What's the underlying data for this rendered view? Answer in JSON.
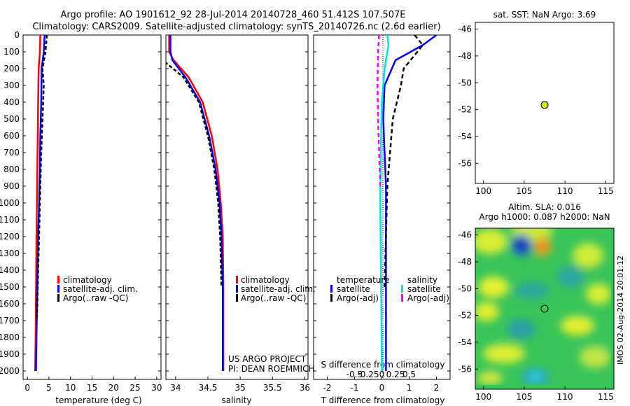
{
  "title_line1": "Argo profile: AO 1901612_92 28-Jul-2014 20140728_460 51.412S 107.507E",
  "title_line2": "Climatology: CARS2009. Satellite-adjusted climatology: synTS_20140726.nc (2.6d earlier)",
  "colors": {
    "climatology": "#ff0000",
    "satellite": "#0000ff",
    "argo": "#000000",
    "sat_salinity": "#00e5e5",
    "argo_salinity": "#ff00ff",
    "float_marker": "#d8e620"
  },
  "depth_ticks": [
    "0",
    "100",
    "200",
    "300",
    "400",
    "500",
    "600",
    "700",
    "800",
    "900",
    "1000",
    "1100",
    "1200",
    "1300",
    "1400",
    "1500",
    "1600",
    "1700",
    "1800",
    "1900",
    "2000"
  ],
  "panel_temperature": {
    "xlabel": "temperature (deg C)",
    "xticks": [
      "0",
      "5",
      "10",
      "15",
      "20",
      "25",
      "30"
    ],
    "legend": [
      "climatology",
      "satellite-adj. clim.",
      "Argo(..raw -QC)"
    ]
  },
  "panel_salinity": {
    "xlabel": "salinity",
    "xticks": [
      "34",
      "34.5",
      "35",
      "35.5",
      "36"
    ],
    "legend": [
      "climatology",
      "satellite-adj. clim.",
      "Argo(..raw -QC)"
    ],
    "note1": "US ARGO PROJECT",
    "note2": "PI: DEAN ROEMMICH"
  },
  "panel_diff": {
    "xlabel": "T difference from climatology",
    "xlabel_top": "S difference from climatology",
    "xticks_t": [
      "-2",
      "-1",
      "0",
      "1",
      "2"
    ],
    "xticks_s": [
      "-0.5",
      "-0.25",
      "0",
      "0.25",
      "0.5"
    ],
    "legend_t_header": "temperature",
    "legend_s_header": "salinity",
    "legend_t": [
      "satellite",
      "Argo(-adj)"
    ],
    "legend_s": [
      "satellite",
      "Argo(-adj)"
    ]
  },
  "panel_sst": {
    "title": "sat. SST: NaN Argo: 3.69",
    "xticks": [
      "100",
      "105",
      "110",
      "115"
    ],
    "yticks": [
      "-46",
      "-48",
      "-50",
      "-52",
      "-54",
      "-56"
    ]
  },
  "panel_sla": {
    "title1": "Altim. SLA: 0.016",
    "title2": "Argo h1000: 0.087 h2000: NaN",
    "xticks": [
      "100",
      "105",
      "110",
      "115"
    ],
    "yticks": [
      "-46",
      "-48",
      "-50",
      "-52",
      "-54",
      "-56"
    ],
    "side_label": "IMOS 02-Aug-2014 20:01:12"
  },
  "chart_data": [
    {
      "type": "line",
      "xlabel": "temperature (deg C)",
      "xlim": [
        -1,
        31
      ],
      "ylim": [
        2050,
        0
      ],
      "series": [
        {
          "name": "climatology",
          "x": [
            3.0,
            2.9,
            2.6,
            2.5,
            2.4,
            2.3,
            2.2,
            2.1,
            2.0,
            1.9,
            1.8
          ],
          "y": [
            0,
            100,
            200,
            400,
            600,
            800,
            1000,
            1200,
            1500,
            1800,
            2000
          ]
        },
        {
          "name": "satellite-adj. clim.",
          "x": [
            4.0,
            3.8,
            3.3,
            3.2,
            3.0,
            2.9,
            2.7,
            2.5,
            2.3,
            2.1,
            2.0
          ],
          "y": [
            0,
            100,
            200,
            400,
            600,
            800,
            1000,
            1200,
            1500,
            1800,
            2000
          ]
        },
        {
          "name": "Argo(..raw -QC)",
          "x": [
            4.5,
            4.2,
            3.5,
            3.8,
            3.5,
            3.2,
            3.0,
            2.8,
            2.6,
            2.4,
            2.2
          ],
          "y": [
            0,
            100,
            200,
            300,
            500,
            700,
            900,
            1100,
            1300,
            1500,
            1700
          ]
        }
      ]
    },
    {
      "type": "line",
      "xlabel": "salinity",
      "xlim": [
        33.85,
        36.05
      ],
      "ylim": [
        2050,
        0
      ],
      "series": [
        {
          "name": "climatology",
          "x": [
            33.9,
            33.9,
            33.97,
            34.2,
            34.42,
            34.56,
            34.65,
            34.7,
            34.73,
            34.74,
            34.74
          ],
          "y": [
            0,
            100,
            150,
            250,
            400,
            600,
            800,
            1000,
            1200,
            1500,
            2000
          ]
        },
        {
          "name": "satellite-adj. clim.",
          "x": [
            33.92,
            33.92,
            33.95,
            34.15,
            34.38,
            34.52,
            34.62,
            34.68,
            34.71,
            34.73,
            34.73
          ],
          "y": [
            0,
            100,
            150,
            250,
            400,
            600,
            800,
            1000,
            1200,
            1500,
            2000
          ]
        },
        {
          "name": "Argo(..raw -QC)",
          "x": [
            33.79,
            33.79,
            33.8,
            34.12,
            34.36,
            34.5,
            34.6,
            34.66,
            34.69,
            34.71
          ],
          "y": [
            0,
            100,
            150,
            250,
            400,
            600,
            800,
            1000,
            1200,
            1500
          ]
        }
      ]
    },
    {
      "type": "line",
      "xlabel": "T difference from climatology",
      "xlim": [
        -2.5,
        2.5
      ],
      "ylim": [
        2050,
        0
      ],
      "series": [
        {
          "name": "temperature satellite",
          "x": [
            2.0,
            1.5,
            0.5,
            0.1,
            0.05,
            0.1,
            0.15,
            0.15,
            0.15,
            0.15,
            0.15
          ],
          "y": [
            0,
            60,
            150,
            300,
            500,
            700,
            900,
            1200,
            1500,
            1800,
            2000
          ]
        },
        {
          "name": "temperature Argo(-adj)",
          "x": [
            1.2,
            1.5,
            0.8,
            0.7,
            0.4,
            0.3,
            0.2,
            0.15,
            0.1
          ],
          "y": [
            0,
            60,
            200,
            300,
            500,
            700,
            900,
            1200,
            1500
          ]
        },
        {
          "name": "salinity satellite",
          "x": [
            0.1,
            0.12,
            0.05,
            0.0,
            -0.02,
            -0.03,
            -0.02,
            -0.01,
            0.0
          ],
          "y": [
            0,
            60,
            200,
            400,
            700,
            1000,
            1300,
            1600,
            2000
          ]
        },
        {
          "name": "salinity Argo(-adj)",
          "x": [
            -0.05,
            -0.07,
            -0.08,
            -0.07,
            -0.05,
            -0.03
          ],
          "y": [
            0,
            100,
            300,
            500,
            700,
            900
          ]
        }
      ]
    },
    {
      "type": "scatter",
      "title": "sat. SST: NaN Argo: 3.69",
      "xlim": [
        99,
        116
      ],
      "ylim": [
        -57.5,
        -45.5
      ],
      "series": [
        {
          "x": [
            107.507
          ],
          "y": [
            -51.412
          ]
        }
      ]
    },
    {
      "type": "heatmap",
      "title": "Altim. SLA: 0.016",
      "xlim": [
        99,
        116
      ],
      "ylim": [
        -57.5,
        -45.5
      ],
      "series": [
        {
          "x": [
            107.507
          ],
          "y": [
            -51.412
          ]
        }
      ]
    }
  ]
}
